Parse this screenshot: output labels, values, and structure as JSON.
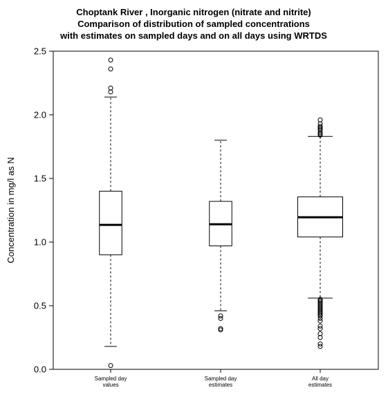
{
  "chart_data": {
    "type": "boxplot",
    "title_lines": [
      "Choptank River , Inorganic nitrogen (nitrate and nitrite)",
      "Comparison of distribution of sampled concentrations",
      "with estimates on sampled days and on all days using  WRTDS"
    ],
    "ylabel": "Concentration in mg/l as N",
    "ylim": [
      0,
      2.5
    ],
    "yticks": [
      "0.0",
      "0.5",
      "1.0",
      "1.5",
      "2.0",
      "2.5"
    ],
    "grid": false,
    "boxes": [
      {
        "label_lines": [
          "Sampled day",
          "values"
        ],
        "whisker_low": 0.18,
        "q1": 0.9,
        "median": 1.135,
        "q3": 1.4,
        "whisker_high": 2.14,
        "outliers": [
          0.03,
          2.18,
          2.21,
          2.36,
          2.43
        ],
        "width": 0.25
      },
      {
        "label_lines": [
          "Sampled day",
          "estimates"
        ],
        "whisker_low": 0.46,
        "q1": 0.97,
        "median": 1.14,
        "q3": 1.32,
        "whisker_high": 1.8,
        "outliers": [
          0.31,
          0.32,
          0.4,
          0.42
        ],
        "width": 0.25
      },
      {
        "label_lines": [
          "All day",
          "estimates"
        ],
        "whisker_low": 0.56,
        "q1": 1.04,
        "median": 1.195,
        "q3": 1.355,
        "whisker_high": 1.83,
        "outliers": [
          0.18,
          0.2,
          0.25,
          0.28,
          0.32,
          0.34,
          0.38,
          0.4,
          0.42,
          0.43,
          0.44,
          0.45,
          0.46,
          0.47,
          0.48,
          0.49,
          0.5,
          0.51,
          0.52,
          0.53,
          0.54,
          0.55,
          1.84,
          1.85,
          1.86,
          1.88,
          1.89,
          1.9,
          1.91,
          1.93,
          1.96
        ],
        "width": 0.5
      }
    ]
  }
}
